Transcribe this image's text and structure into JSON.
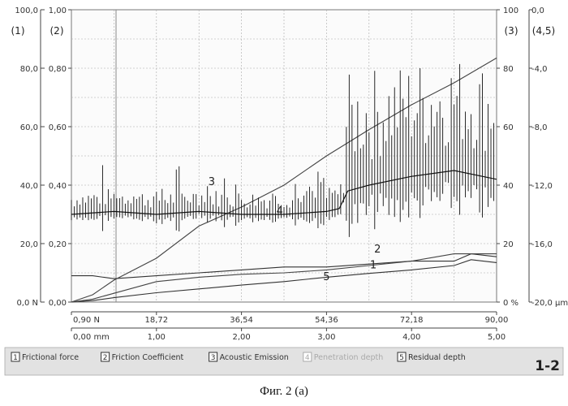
{
  "caption": "Фиг. 2 (а)",
  "panel_id": "1-2",
  "legend": [
    {
      "num": "1",
      "label": "Frictional force",
      "faded": false
    },
    {
      "num": "2",
      "label": "Friction Coefficient",
      "faded": false
    },
    {
      "num": "3",
      "label": "Acoustic Emission",
      "faded": false
    },
    {
      "num": "4",
      "label": "Penetration depth",
      "faded": true
    },
    {
      "num": "5",
      "label": "Residual depth",
      "faded": false
    }
  ],
  "chart_data": {
    "type": "line",
    "grid": true,
    "axes": {
      "y1": {
        "label": "(1)",
        "range": [
          0,
          100
        ],
        "ticks": [
          "100,0",
          "80,0",
          "60,0",
          "40,0",
          "20,0",
          "0,0 N"
        ]
      },
      "y2": {
        "label": "(2)",
        "range": [
          0,
          1
        ],
        "ticks": [
          "1,00",
          "0,80",
          "0,60",
          "0,40",
          "0,20",
          "0,00"
        ]
      },
      "y3": {
        "label": "(3)",
        "range": [
          0,
          100
        ],
        "ticks": [
          "100",
          "80",
          "60",
          "40",
          "20",
          "0 %"
        ]
      },
      "y45": {
        "label": "(4,5)",
        "range": [
          0,
          -20
        ],
        "ticks": [
          "0,0",
          "-4,0",
          "-8,0",
          "-12,0",
          "-16,0",
          "-20,0 µm"
        ]
      },
      "x_force": {
        "range": [
          0.9,
          90
        ],
        "ticks": [
          "0,90 N",
          "18,72",
          "36,54",
          "54,36",
          "72,18",
          "90,00"
        ]
      },
      "x_distance": {
        "range": [
          0,
          5
        ],
        "ticks": [
          "0,00 mm",
          "1,00",
          "2,00",
          "3,00",
          "4,00",
          "5,00"
        ]
      }
    },
    "series": [
      {
        "name": "1",
        "axis": "y1",
        "color": "#333333",
        "x": [
          0,
          0.25,
          0.5,
          1,
          1.5,
          2,
          2.5,
          3,
          3.5,
          4,
          4.5,
          4.7,
          5
        ],
        "y": [
          0,
          0.5,
          1.5,
          3.2,
          4.5,
          5.8,
          7.0,
          8.5,
          9.8,
          11.0,
          12.5,
          14.5,
          13.5
        ]
      },
      {
        "name": "2",
        "axis": "y2",
        "color": "#333333",
        "x": [
          0,
          0.25,
          0.5,
          1,
          1.5,
          2,
          2.5,
          3,
          3.5,
          4,
          4.5,
          4.7,
          5
        ],
        "y": [
          0.09,
          0.09,
          0.08,
          0.09,
          0.1,
          0.11,
          0.12,
          0.12,
          0.13,
          0.14,
          0.14,
          0.165,
          0.155
        ]
      },
      {
        "name": "3",
        "axis": "y3",
        "color": "#111111",
        "x": [
          0,
          0.5,
          1,
          1.5,
          2,
          2.5,
          3,
          3.15,
          3.25,
          3.5,
          4,
          4.5,
          5
        ],
        "y": [
          30,
          31,
          30,
          31,
          30,
          30,
          31,
          32,
          38,
          40,
          43,
          45,
          42
        ]
      },
      {
        "name": "4",
        "axis": "y45",
        "color": "#444444",
        "x": [
          0,
          0.25,
          0.5,
          1,
          1.5,
          2,
          2.5,
          3,
          3.5,
          4,
          4.5,
          5
        ],
        "y": [
          0,
          -0.5,
          -1.5,
          -3.0,
          -5.2,
          -6.5,
          -8.0,
          -10.0,
          -11.8,
          -13.5,
          -15.0,
          -16.7
        ]
      },
      {
        "name": "5",
        "axis": "y45",
        "color": "#444444",
        "x": [
          0,
          0.25,
          0.5,
          1,
          1.5,
          2,
          2.5,
          3,
          3.5,
          4,
          4.5,
          5
        ],
        "y": [
          0,
          -0.2,
          -0.6,
          -1.4,
          -1.7,
          -1.9,
          -2.0,
          -2.2,
          -2.5,
          -2.8,
          -3.3,
          -3.3
        ]
      }
    ],
    "annotations": [
      "1",
      "2",
      "3",
      "4",
      "5"
    ]
  }
}
